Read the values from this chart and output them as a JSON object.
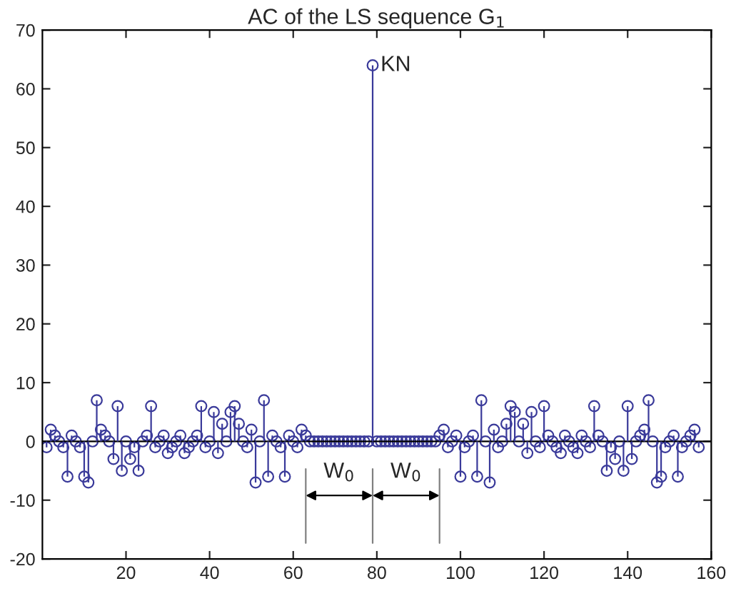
{
  "chart_data": {
    "type": "lollipop",
    "title": "AC of the LS sequence G$_{1}$",
    "x": [
      1,
      2,
      3,
      4,
      5,
      6,
      7,
      8,
      9,
      10,
      11,
      12,
      13,
      14,
      15,
      16,
      17,
      18,
      19,
      20,
      21,
      22,
      23,
      24,
      25,
      26,
      27,
      28,
      29,
      30,
      31,
      32,
      33,
      34,
      35,
      36,
      37,
      38,
      39,
      40,
      41,
      42,
      43,
      44,
      45,
      46,
      47,
      48,
      49,
      50,
      51,
      52,
      53,
      54,
      55,
      56,
      57,
      58,
      59,
      60,
      61,
      62,
      63,
      64,
      65,
      66,
      67,
      68,
      69,
      70,
      71,
      72,
      73,
      74,
      75,
      76,
      77,
      78,
      79,
      80,
      81,
      82,
      83,
      84,
      85,
      86,
      87,
      88,
      89,
      90,
      91,
      92,
      93,
      94,
      95,
      96,
      97,
      98,
      99,
      100,
      101,
      102,
      103,
      104,
      105,
      106,
      107,
      108,
      109,
      110,
      111,
      112,
      113,
      114,
      115,
      116,
      117,
      118,
      119,
      120,
      121,
      122,
      123,
      124,
      125,
      126,
      127,
      128,
      129,
      130,
      131,
      132,
      133,
      134,
      135,
      136,
      137,
      138,
      139,
      140,
      141,
      142,
      143,
      144,
      145,
      146,
      147,
      148,
      149,
      150,
      151,
      152,
      153,
      154,
      155,
      156,
      157
    ],
    "series": [
      {
        "color": "#3a3a9a",
        "values": [
          -1,
          2,
          1,
          0,
          -1,
          -6,
          1,
          0,
          -1,
          -6,
          -7,
          0,
          7,
          2,
          1,
          0,
          -3,
          6,
          -5,
          0,
          -3,
          -1,
          -5,
          0,
          1,
          6,
          -1,
          0,
          1,
          -2,
          -1,
          0,
          1,
          -2,
          -1,
          0,
          1,
          6,
          -1,
          0,
          5,
          -2,
          3,
          0,
          5,
          6,
          3,
          0,
          -1,
          2,
          -7,
          0,
          7,
          -6,
          1,
          0,
          -1,
          -6,
          1,
          0,
          -1,
          2,
          1,
          0,
          0,
          0,
          0,
          0,
          0,
          0,
          0,
          0,
          0,
          0,
          0,
          0,
          0,
          0,
          64,
          0,
          0,
          0,
          0,
          0,
          0,
          0,
          0,
          0,
          0,
          0,
          0,
          0,
          0,
          0,
          1,
          2,
          -1,
          0,
          1,
          -6,
          -1,
          0,
          1,
          -6,
          7,
          0,
          -7,
          2,
          -1,
          0,
          3,
          6,
          5,
          0,
          3,
          -2,
          5,
          0,
          -1,
          6,
          1,
          0,
          -1,
          -2,
          1,
          0,
          -1,
          -2,
          1,
          0,
          -1,
          6,
          1,
          0,
          -5,
          -1,
          -3,
          0,
          -5,
          6,
          -3,
          0,
          1,
          2,
          7,
          0,
          -7,
          -6,
          -1,
          0,
          1,
          -6,
          -1,
          0,
          1,
          2,
          -1
        ]
      }
    ],
    "xlim": [
      0,
      160
    ],
    "xticks": [
      20,
      40,
      60,
      80,
      100,
      120,
      140,
      160
    ],
    "ylim": [
      -20,
      70
    ],
    "yticks": [
      -20,
      -10,
      0,
      10,
      20,
      30,
      40,
      50,
      60,
      70
    ],
    "marker": "circle",
    "grid": false,
    "ref_lines": [
      {
        "axis": "y",
        "value": 0,
        "color": "#000000"
      }
    ],
    "legend": false,
    "annotations": [
      {
        "text": "KN",
        "x": 79,
        "y": 64
      },
      "W$_{0}$",
      "W$_{0}$"
    ]
  }
}
